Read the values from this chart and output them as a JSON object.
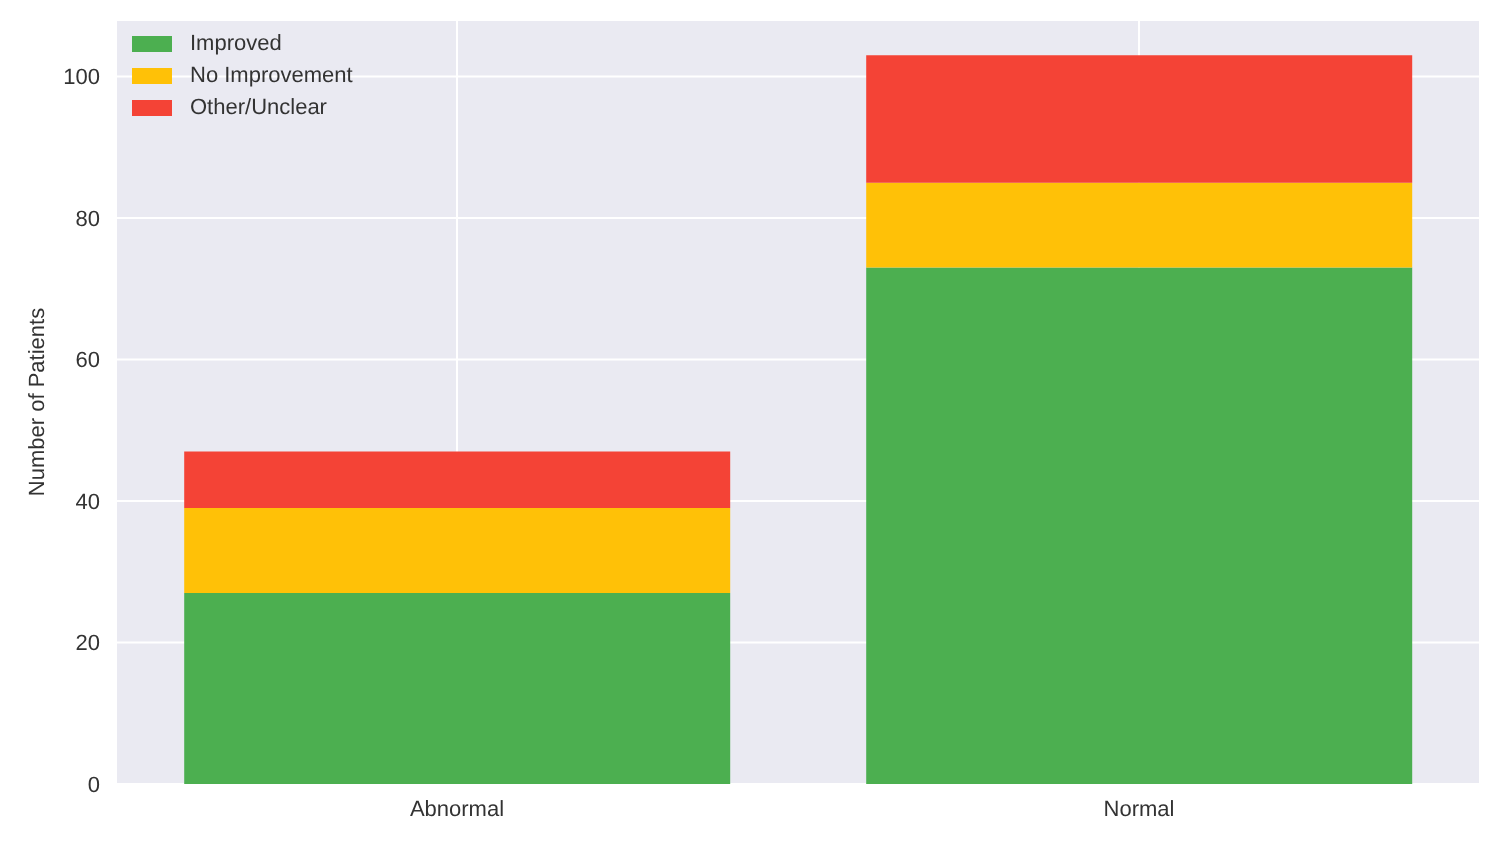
{
  "chart_data": {
    "type": "bar",
    "ylabel": "Number of Patients",
    "categories": [
      "Abnormal",
      "Normal"
    ],
    "stacked": true,
    "series": [
      {
        "name": "Improved",
        "color": "#4caf50",
        "values": [
          27,
          73
        ]
      },
      {
        "name": "No Improvement",
        "color": "#ffc107",
        "values": [
          12,
          12
        ]
      },
      {
        "name": "Other/Unclear",
        "color": "#f44336",
        "values": [
          8,
          18
        ]
      }
    ],
    "ylim": [
      0,
      108
    ],
    "yticks": [
      0,
      20,
      40,
      60,
      80,
      100
    ],
    "grid": true,
    "legend": "top left"
  }
}
